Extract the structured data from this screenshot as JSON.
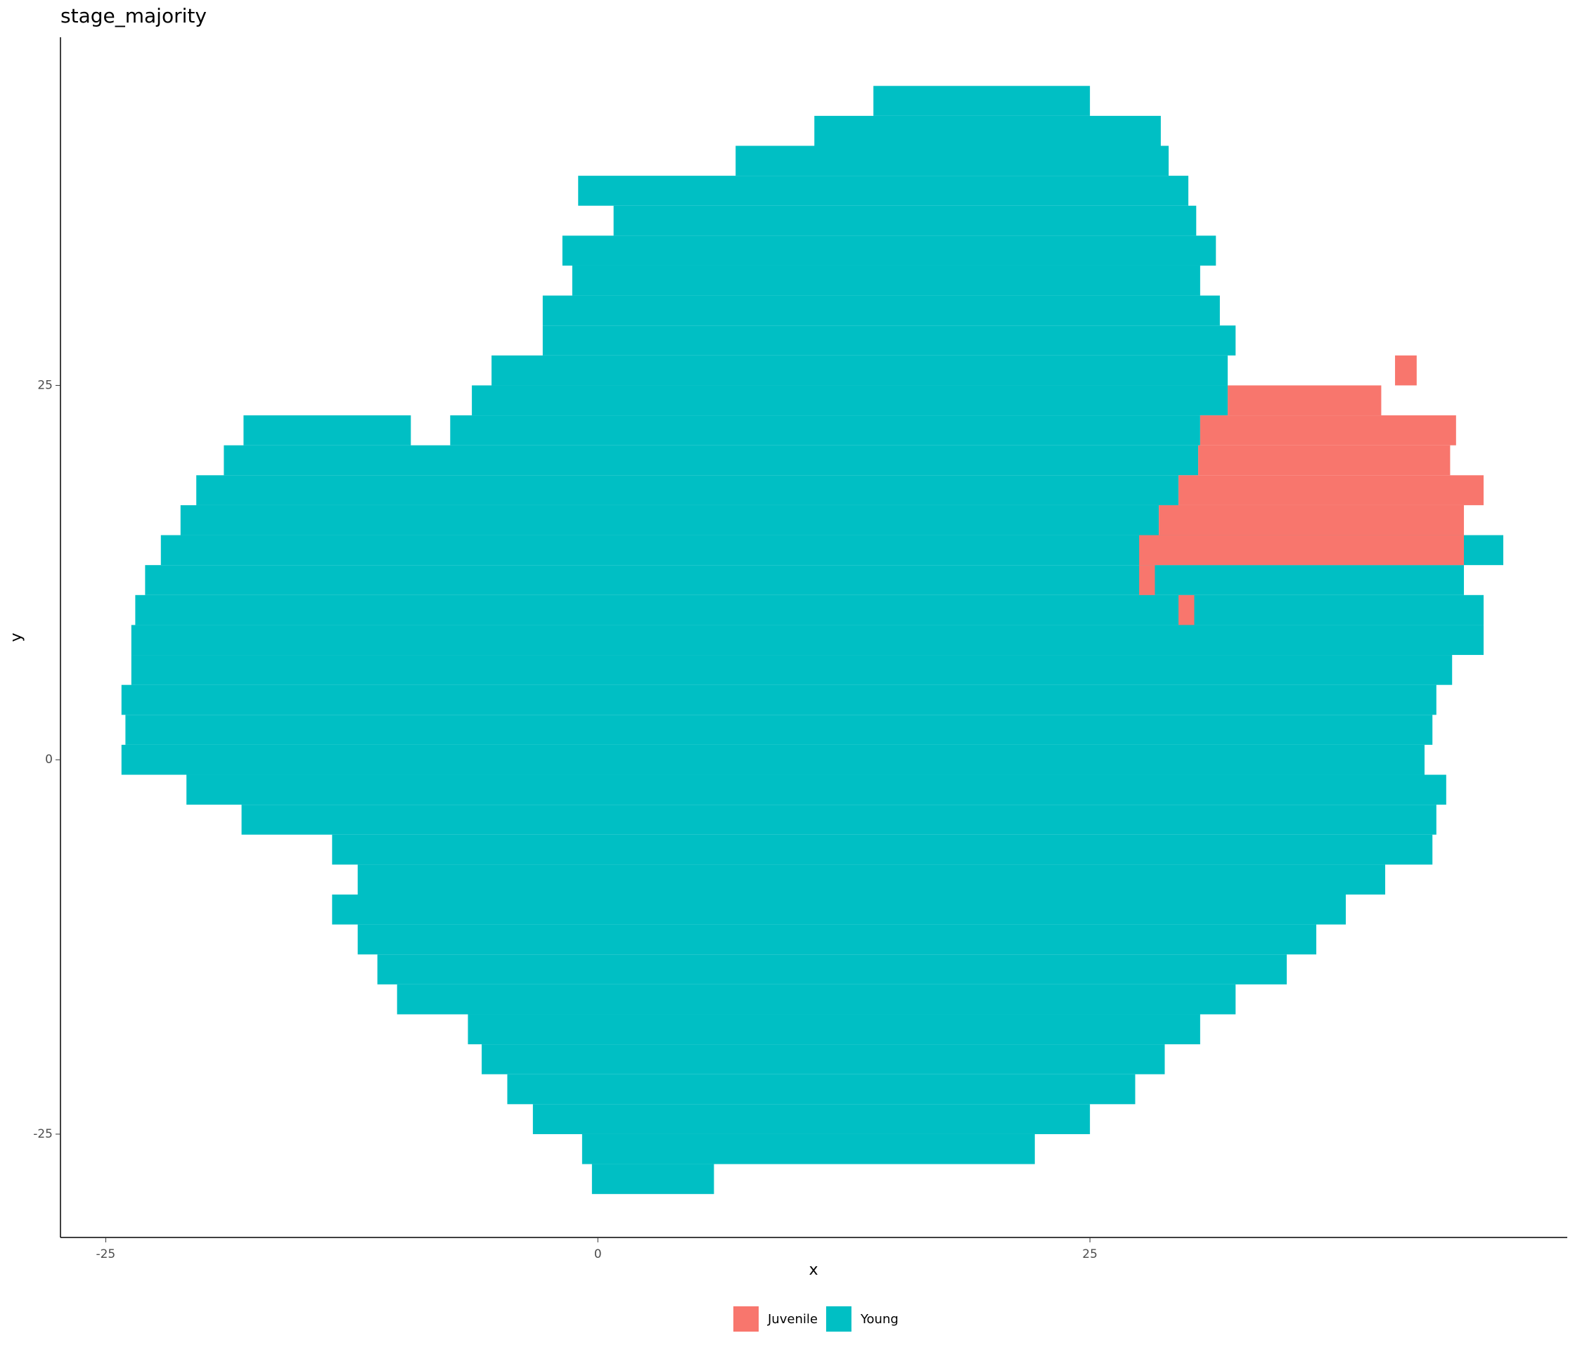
{
  "chart_data": {
    "type": "hexbin",
    "title": "stage_majority",
    "x_label": "x",
    "y_label": "y",
    "xlim": [
      -27.3,
      49.25
    ],
    "ylim": [
      -31.9,
      48.25
    ],
    "xticks": [
      -25,
      0,
      25
    ],
    "yticks": [
      -25,
      0,
      25
    ],
    "legend": "bottom",
    "series": [
      {
        "name": "Young",
        "color": "#00bfc4",
        "y": [
          44,
          42,
          40,
          38,
          36,
          34,
          32,
          30,
          28,
          26,
          24,
          22,
          22,
          20,
          18,
          16,
          14,
          12,
          10,
          8,
          6,
          4,
          2,
          0,
          -2,
          -4,
          -6,
          -8,
          -10,
          -12,
          -14,
          -16,
          -18,
          -20,
          -22,
          -24,
          -26,
          -28
        ],
        "xmin": [
          14,
          11,
          7,
          -1,
          0.8,
          -1.8,
          -1.3,
          -2.8,
          -2.8,
          -5.4,
          -6.4,
          -18,
          -7.5,
          -19,
          -20.4,
          -21.2,
          -22.2,
          -23,
          -23.5,
          -23.7,
          -23.7,
          -24.2,
          -24,
          -24.2,
          -20.9,
          -18.1,
          -13.5,
          -12.2,
          -13.5,
          -12.2,
          -11.2,
          -10.2,
          -6.6,
          -5.9,
          -4.6,
          -3.3,
          -0.8,
          -0.3
        ],
        "xmax": [
          25,
          28.6,
          29,
          30,
          30.4,
          31.4,
          30.6,
          31.6,
          32.4,
          32,
          32,
          -9.5,
          30.6,
          30.5,
          29.5,
          28.5,
          46,
          44,
          45,
          45,
          43.4,
          42.6,
          42.4,
          42,
          43.1,
          42.6,
          42.4,
          40,
          38,
          36.5,
          35,
          32.4,
          30.6,
          28.8,
          27.3,
          25,
          22.2,
          5.9
        ]
      },
      {
        "name": "Juvenile",
        "color": "#f8766d",
        "y": [
          26,
          24,
          22,
          20,
          18,
          16,
          14,
          12,
          10
        ],
        "xmin": [
          40.5,
          32,
          30.6,
          30.5,
          29.5,
          28.5,
          27.5,
          27.5,
          29.5
        ],
        "xmax": [
          41.6,
          39.8,
          43.6,
          43.3,
          45,
          44,
          44,
          28.3,
          30.3
        ]
      }
    ]
  }
}
